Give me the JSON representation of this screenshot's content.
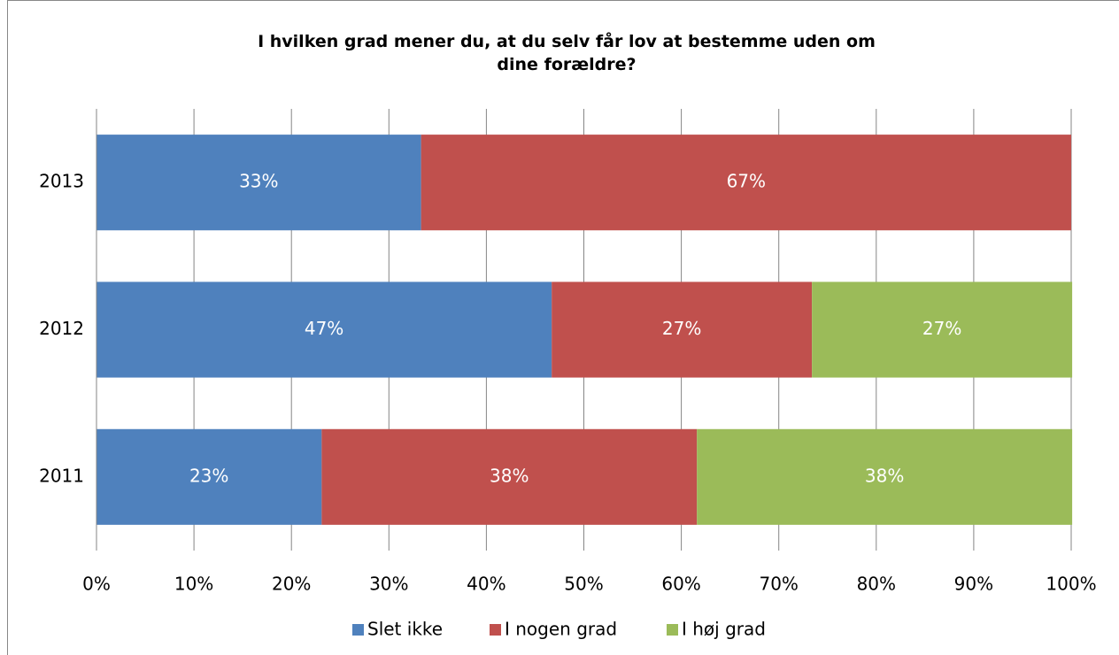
{
  "chart_data": {
    "type": "stacked-barh",
    "title": "I hvilken grad mener du, at du selv får lov at bestemme uden om dine forældre?",
    "categories": [
      "2013",
      "2012",
      "2011"
    ],
    "series": [
      {
        "name": "Slet ikke",
        "color": "#4f81bd",
        "values": [
          33.3,
          46.7,
          23.1
        ],
        "value_labels": [
          "33%",
          "47%",
          "23%"
        ]
      },
      {
        "name": "I nogen grad",
        "color": "#c0504d",
        "values": [
          66.7,
          26.7,
          38.5
        ],
        "value_labels": [
          "67%",
          "27%",
          "38%"
        ]
      },
      {
        "name": "I høj grad",
        "color": "#9bbb59",
        "values": [
          null,
          26.7,
          38.5
        ],
        "value_labels": [
          null,
          "27%",
          "38%"
        ]
      }
    ],
    "xlim": [
      0,
      100
    ],
    "xticks": [
      {
        "value": 0,
        "label": "0%"
      },
      {
        "value": 10,
        "label": "10%"
      },
      {
        "value": 20,
        "label": "20%"
      },
      {
        "value": 30,
        "label": "30%"
      },
      {
        "value": 40,
        "label": "40%"
      },
      {
        "value": 50,
        "label": "50%"
      },
      {
        "value": 60,
        "label": "60%"
      },
      {
        "value": 70,
        "label": "70%"
      },
      {
        "value": 80,
        "label": "80%"
      },
      {
        "value": 90,
        "label": "90%"
      },
      {
        "value": 100,
        "label": "100%"
      }
    ],
    "grid": true,
    "legend": "bottom"
  }
}
